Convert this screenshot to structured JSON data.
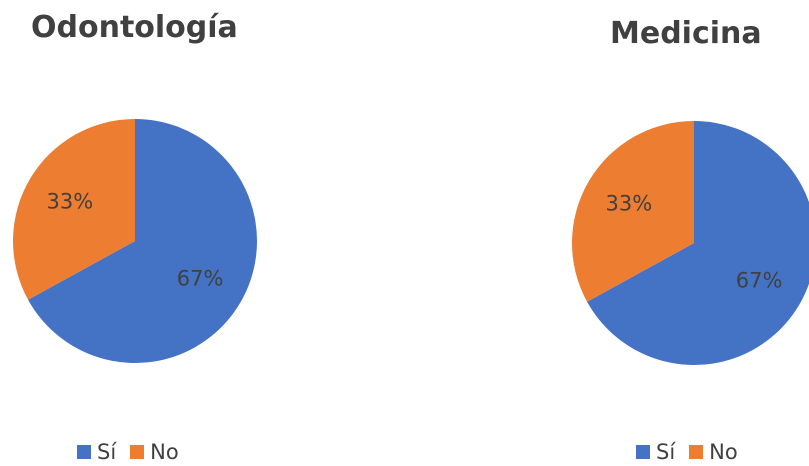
{
  "chart_data": [
    {
      "type": "pie",
      "title": "Odontología",
      "categories": [
        "Sí",
        "No"
      ],
      "values": [
        67,
        33
      ],
      "value_labels": [
        "67%",
        "33%"
      ],
      "colors": [
        "#4472C4",
        "#ED7D31"
      ],
      "legend_position": "bottom"
    },
    {
      "type": "pie",
      "title": "Medicina",
      "categories": [
        "Sí",
        "No"
      ],
      "values": [
        67,
        33
      ],
      "value_labels": [
        "67%",
        "33%"
      ],
      "colors": [
        "#4472C4",
        "#ED7D31"
      ],
      "legend_position": "bottom"
    }
  ]
}
